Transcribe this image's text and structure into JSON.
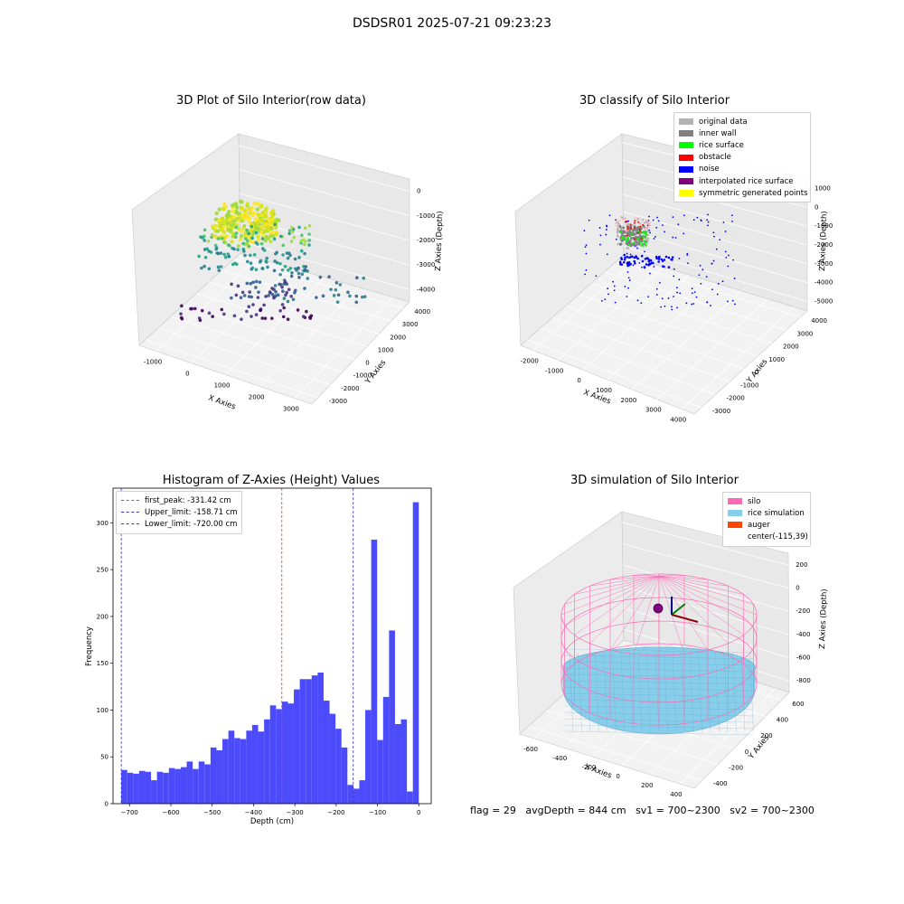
{
  "figure": {
    "suptitle": "DSDSR01 2025-07-21 09:23:23",
    "footer": {
      "flag": "flag = 29",
      "avg_depth": "avgDepth = 844 cm",
      "sv1": "sv1 = 700~2300",
      "sv2": "sv2 = 700~2300"
    }
  },
  "colors": {
    "hist_bar": "#4b4bfb",
    "peak_line": "#e23b3b",
    "limit_line": "#3333cc",
    "silo": "#ff69b4",
    "rice": "#87ceeb",
    "auger": "#ff4500"
  },
  "chart_data": [
    {
      "type": "scatter",
      "title": "3D Plot of Silo Interior(row data)",
      "xlabel": "X Axies",
      "ylabel": "Y Axies",
      "zlabel": "Z Axies (Depth)",
      "x_ticks": [
        "-1000",
        "0",
        "1000",
        "2000",
        "3000"
      ],
      "y_ticks": [
        "-3000",
        "-2000",
        "-1000",
        "0",
        "1000",
        "2000",
        "3000",
        "4000"
      ],
      "z_ticks": [
        "-4000",
        "-3000",
        "-2000",
        "-1000",
        "0"
      ],
      "xlim": [
        -1500,
        3000
      ],
      "ylim": [
        -3200,
        4200
      ],
      "zlim": [
        -4300,
        200
      ],
      "colormap": "viridis"
    },
    {
      "type": "scatter",
      "title": "3D classify of Silo Interior",
      "xlabel": "X Axies",
      "ylabel": "Y Axies",
      "zlabel": "Z Axies (Depth)",
      "x_ticks": [
        "-2000",
        "-1000",
        "0",
        "1000",
        "2000",
        "3000",
        "4000"
      ],
      "y_ticks": [
        "-3000",
        "-2000",
        "-1000",
        "0",
        "1000",
        "2000",
        "3000",
        "4000"
      ],
      "z_ticks": [
        "-5000",
        "-4000",
        "-3000",
        "-2000",
        "-1000",
        "0",
        "1000"
      ],
      "xlim": [
        -2500,
        4000
      ],
      "ylim": [
        -3200,
        4200
      ],
      "zlim": [
        -5500,
        1000
      ],
      "legend": [
        {
          "label": "original data",
          "color": "#b3b3b3"
        },
        {
          "label": "inner wall",
          "color": "#808080"
        },
        {
          "label": "rice surface",
          "color": "#00ff00"
        },
        {
          "label": "obstacle",
          "color": "#ff0000"
        },
        {
          "label": "noise",
          "color": "#0000ff"
        },
        {
          "label": "interpolated rice surface",
          "color": "#800080"
        },
        {
          "label": "symmetric generated points",
          "color": "#ffff00"
        }
      ]
    },
    {
      "type": "bar",
      "title": "Histogram of Z-Axies (Height) Values",
      "xlabel": "Depth (cm)",
      "ylabel": "Frequency",
      "xlim": [
        -740,
        30
      ],
      "ylim": [
        0,
        337
      ],
      "x_ticks": [
        -700,
        -600,
        -500,
        -400,
        -300,
        -200,
        -100,
        0
      ],
      "y_ticks": [
        0,
        50,
        100,
        150,
        200,
        250,
        300
      ],
      "bin_start": -720,
      "bin_width": 14.4,
      "values": [
        36,
        33,
        32,
        35,
        34,
        25,
        34,
        33,
        38,
        37,
        39,
        45,
        37,
        45,
        42,
        60,
        57,
        69,
        78,
        70,
        69,
        78,
        84,
        77,
        90,
        105,
        101,
        109,
        107,
        122,
        133,
        133,
        137,
        140,
        110,
        96,
        80,
        60,
        20,
        16,
        25,
        100,
        282,
        68,
        114,
        185,
        85,
        90,
        13,
        322
      ],
      "vlines": [
        {
          "label": "first_peak: -331.42 cm",
          "x": -331.42,
          "kind": "peak"
        },
        {
          "label": "Upper_limit: -158.71 cm",
          "x": -158.71,
          "kind": "limit"
        },
        {
          "label": "Lower_limit: -720.00 cm",
          "x": -720.0,
          "kind": "limit"
        }
      ]
    },
    {
      "type": "scatter",
      "title": "3D simulation of Silo Interior",
      "xlabel": "X Axies",
      "ylabel": "Y Axies",
      "zlabel": "Z Axies (Depth)",
      "x_ticks": [
        "-600",
        "-400",
        "-200",
        "0",
        "200",
        "400"
      ],
      "y_ticks": [
        "-400",
        "-200",
        "0",
        "200",
        "400",
        "600"
      ],
      "z_ticks": [
        "-800",
        "-600",
        "-400",
        "-200",
        "0",
        "200"
      ],
      "xlim": [
        -700,
        450
      ],
      "ylim": [
        -500,
        650
      ],
      "zlim": [
        -900,
        300
      ],
      "legend": [
        {
          "label": "silo",
          "color": "#ff69b4"
        },
        {
          "label": "rice simulation",
          "color": "#87ceeb"
        },
        {
          "label": "auger",
          "color": "#ff4500"
        },
        {
          "label": "center(-115,39)",
          "color": ""
        }
      ]
    }
  ]
}
